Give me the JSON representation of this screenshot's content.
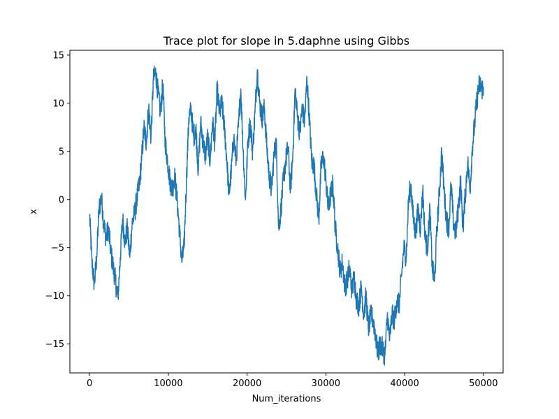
{
  "chart_data": {
    "type": "line",
    "title": "Trace plot for slope in 5.daphne using Gibbs",
    "xlabel": "Num_iterations",
    "ylabel": "x",
    "xlim": [
      -2500,
      52500
    ],
    "ylim": [
      -18,
      15.5
    ],
    "xticks": [
      0,
      10000,
      20000,
      30000,
      40000,
      50000
    ],
    "xtick_labels": [
      "0",
      "10000",
      "20000",
      "30000",
      "40000",
      "50000"
    ],
    "yticks": [
      -15,
      -10,
      -5,
      0,
      5,
      10,
      15
    ],
    "ytick_labels": [
      "−15",
      "−10",
      "−5",
      "0",
      "5",
      "10",
      "15"
    ],
    "grid": false,
    "legend": "none",
    "colors": {
      "line": "#1f77b4"
    },
    "series": [
      {
        "x": [
          0,
          300,
          600,
          900,
          1200,
          1500,
          1800,
          2100,
          2400,
          2700,
          3000,
          3300,
          3600,
          3900,
          4200,
          4500,
          4800,
          5100,
          5400,
          5700,
          6000,
          6300,
          6600,
          6900,
          7200,
          7500,
          7800,
          8100,
          8400,
          8700,
          9000,
          9300,
          9600,
          9900,
          10200,
          10500,
          10800,
          11100,
          11400,
          11700,
          12000,
          12300,
          12600,
          12900,
          13200,
          13500,
          13800,
          14100,
          14400,
          14700,
          15000,
          15300,
          15600,
          15900,
          16200,
          16500,
          16800,
          17100,
          17400,
          17700,
          18000,
          18300,
          18600,
          18900,
          19200,
          19500,
          19800,
          20100,
          20400,
          20700,
          21000,
          21300,
          21600,
          21900,
          22200,
          22500,
          22800,
          23100,
          23400,
          23700,
          24000,
          24300,
          24600,
          24900,
          25200,
          25500,
          25800,
          26100,
          26400,
          26700,
          27000,
          27300,
          27600,
          27900,
          28200,
          28500,
          28800,
          29100,
          29400,
          29700,
          30000,
          30300,
          30600,
          30900,
          31200,
          31500,
          31800,
          32100,
          32400,
          32700,
          33000,
          33300,
          33600,
          33900,
          34200,
          34500,
          34800,
          35100,
          35400,
          35700,
          36000,
          36300,
          36600,
          36900,
          37200,
          37500,
          37800,
          38100,
          38400,
          38700,
          39000,
          39300,
          39600,
          39900,
          40200,
          40500,
          40800,
          41100,
          41400,
          41700,
          42000,
          42300,
          42600,
          42900,
          43200,
          43500,
          43800,
          44100,
          44400,
          44700,
          45000,
          45300,
          45600,
          45900,
          46200,
          46500,
          46800,
          47100,
          47400,
          47700,
          48000,
          48300,
          48600,
          48900,
          49200,
          49500,
          49800,
          50000
        ],
        "values": [
          -1.5,
          -6.5,
          -8.8,
          -6.0,
          -1.0,
          0.3,
          -2.5,
          -4.0,
          -3.0,
          -5.5,
          -7.0,
          -8.5,
          -10.2,
          -6.0,
          -2.0,
          -4.5,
          -3.0,
          -6.0,
          -2.5,
          -1.5,
          0.0,
          1.5,
          4.0,
          7.5,
          6.0,
          9.5,
          6.5,
          12.5,
          13.2,
          11.0,
          9.0,
          12.0,
          6.0,
          4.0,
          2.0,
          1.0,
          2.5,
          0.0,
          -3.0,
          -6.5,
          -5.0,
          2.0,
          8.5,
          9.3,
          6.5,
          7.5,
          3.0,
          8.0,
          6.0,
          4.5,
          6.5,
          4.0,
          8.0,
          6.0,
          11.5,
          9.0,
          10.0,
          7.5,
          4.5,
          0.5,
          3.0,
          6.5,
          4.0,
          7.5,
          11.5,
          5.0,
          0.0,
          6.0,
          8.0,
          5.0,
          9.0,
          13.5,
          10.0,
          8.5,
          9.5,
          5.5,
          2.5,
          1.0,
          4.5,
          6.0,
          -3.0,
          -1.0,
          2.0,
          4.0,
          5.5,
          1.0,
          4.5,
          11.5,
          8.5,
          7.0,
          9.5,
          8.0,
          12.5,
          8.5,
          4.0,
          3.5,
          0.5,
          -2.0,
          3.5,
          4.5,
          2.0,
          -1.0,
          0.5,
          1.5,
          -3.0,
          -5.0,
          -7.5,
          -6.5,
          -9.0,
          -8.5,
          -7.0,
          -9.5,
          -8.0,
          -10.5,
          -11.0,
          -9.0,
          -12.0,
          -10.0,
          -13.5,
          -12.0,
          -12.5,
          -14.0,
          -16.0,
          -15.0,
          -15.5,
          -16.2,
          -12.0,
          -14.5,
          -12.0,
          -12.5,
          -10.5,
          -11.0,
          -8.0,
          -5.0,
          -6.0,
          0.0,
          1.5,
          -2.0,
          -3.5,
          -1.0,
          -3.0,
          1.0,
          -4.0,
          -5.0,
          -1.0,
          -7.0,
          -8.5,
          -3.0,
          0.5,
          5.0,
          1.0,
          -2.0,
          -3.0,
          1.5,
          -2.5,
          -3.5,
          -1.0,
          2.0,
          -3.0,
          0.5,
          4.0,
          1.0,
          5.5,
          8.0,
          10.5,
          12.0,
          11.5,
          11.7
        ]
      }
    ]
  }
}
